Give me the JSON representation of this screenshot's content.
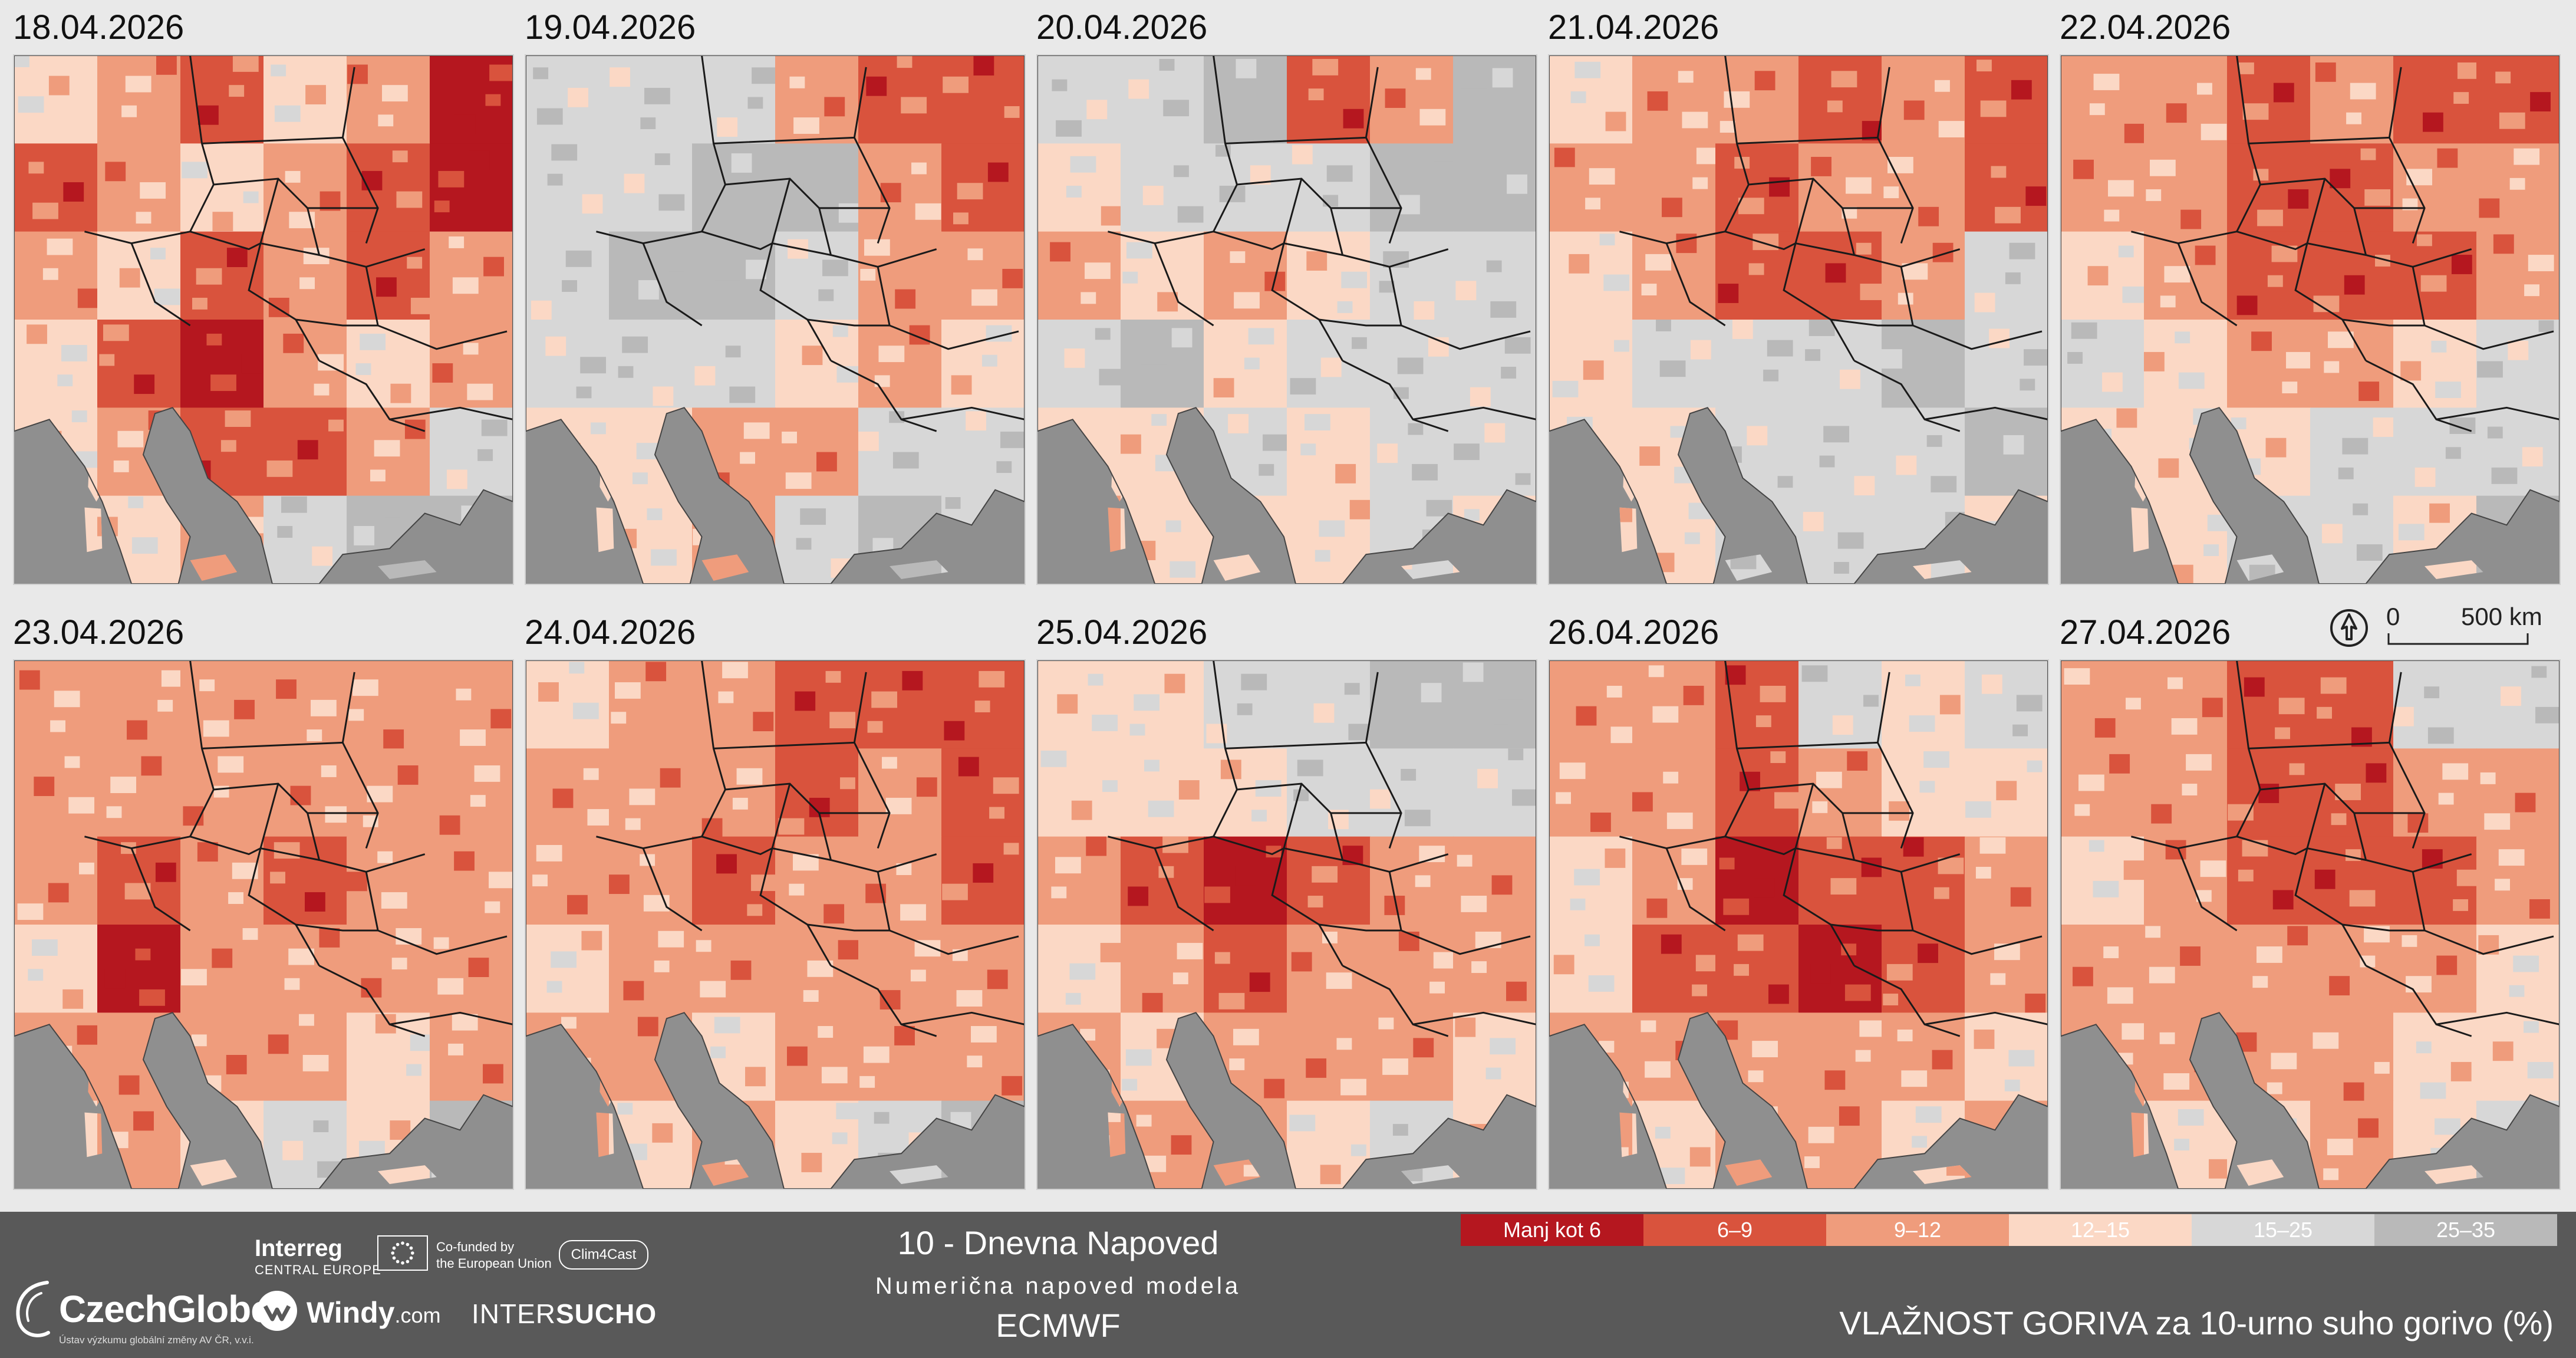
{
  "panels": [
    {
      "date": "18.04.2026",
      "scheme": [
        4,
        3,
        2,
        4,
        3,
        1,
        2,
        3,
        4,
        3,
        2,
        1,
        3,
        4,
        2,
        3,
        2,
        3,
        4,
        2,
        1,
        3,
        4,
        3,
        4,
        3,
        2,
        2,
        3,
        5,
        4,
        4,
        3,
        5,
        6,
        6
      ]
    },
    {
      "date": "19.04.2026",
      "scheme": [
        5,
        5,
        5,
        3,
        2,
        2,
        5,
        5,
        6,
        6,
        3,
        2,
        5,
        6,
        6,
        5,
        3,
        3,
        5,
        5,
        5,
        4,
        3,
        4,
        4,
        4,
        3,
        3,
        5,
        5,
        4,
        4,
        3,
        5,
        6,
        5
      ]
    },
    {
      "date": "20.04.2026",
      "scheme": [
        5,
        5,
        6,
        2,
        3,
        6,
        4,
        5,
        5,
        5,
        6,
        6,
        3,
        4,
        3,
        4,
        5,
        5,
        5,
        6,
        4,
        5,
        5,
        5,
        4,
        4,
        5,
        4,
        5,
        5,
        3,
        4,
        4,
        4,
        5,
        4
      ]
    },
    {
      "date": "21.04.2026",
      "scheme": [
        4,
        3,
        3,
        2,
        3,
        2,
        3,
        3,
        2,
        3,
        3,
        2,
        4,
        3,
        2,
        2,
        3,
        5,
        4,
        5,
        5,
        5,
        6,
        5,
        4,
        4,
        5,
        5,
        5,
        6,
        4,
        4,
        5,
        5,
        5,
        4
      ]
    },
    {
      "date": "22.04.2026",
      "scheme": [
        3,
        3,
        2,
        3,
        2,
        2,
        3,
        3,
        2,
        2,
        3,
        3,
        4,
        3,
        2,
        2,
        2,
        3,
        5,
        4,
        3,
        3,
        4,
        5,
        4,
        4,
        4,
        5,
        5,
        5,
        4,
        4,
        5,
        5,
        4,
        6
      ]
    },
    {
      "date": "23.04.2026",
      "scheme": [
        3,
        3,
        3,
        3,
        3,
        3,
        3,
        3,
        3,
        3,
        3,
        3,
        3,
        2,
        3,
        2,
        3,
        3,
        4,
        1,
        3,
        3,
        3,
        3,
        3,
        3,
        3,
        3,
        4,
        3,
        4,
        3,
        4,
        5,
        4,
        6
      ]
    },
    {
      "date": "24.04.2026",
      "scheme": [
        4,
        3,
        3,
        2,
        2,
        2,
        3,
        3,
        3,
        2,
        3,
        2,
        3,
        3,
        2,
        3,
        3,
        2,
        4,
        3,
        3,
        3,
        3,
        3,
        3,
        3,
        4,
        3,
        3,
        3,
        3,
        4,
        3,
        4,
        5,
        6
      ]
    },
    {
      "date": "25.04.2026",
      "scheme": [
        4,
        4,
        5,
        5,
        6,
        6,
        4,
        4,
        4,
        5,
        5,
        5,
        3,
        2,
        1,
        2,
        3,
        3,
        4,
        3,
        2,
        3,
        3,
        3,
        3,
        4,
        3,
        3,
        3,
        4,
        3,
        3,
        3,
        4,
        5,
        4
      ]
    },
    {
      "date": "26.04.2026",
      "scheme": [
        3,
        3,
        2,
        5,
        4,
        5,
        3,
        3,
        2,
        3,
        4,
        4,
        4,
        3,
        1,
        2,
        2,
        3,
        4,
        2,
        2,
        1,
        2,
        3,
        3,
        3,
        3,
        3,
        3,
        4,
        3,
        4,
        3,
        3,
        4,
        3
      ]
    },
    {
      "date": "27.04.2026",
      "scheme": [
        3,
        3,
        2,
        2,
        5,
        5,
        3,
        3,
        2,
        2,
        3,
        3,
        4,
        3,
        2,
        2,
        2,
        3,
        3,
        3,
        3,
        3,
        3,
        4,
        3,
        3,
        3,
        3,
        4,
        4,
        3,
        4,
        4,
        3,
        4,
        5
      ]
    }
  ],
  "scale": {
    "zero": "0",
    "distance": "500 km"
  },
  "footer": {
    "title": "10 - Dnevna Napoved",
    "subtitle": "Numerična napoved modela",
    "model": "ECMWF",
    "caption": "VLAŽNOST GORIVA za 10-urno suho gorivo (%)"
  },
  "logos": {
    "czechglobe_name": "CzechGlobe",
    "czechglobe_sub": "Ústav výzkumu globální změny AV ČR, v.v.i.",
    "interreg": "Interreg",
    "interreg_sub": "CENTRAL EUROPE",
    "eu_line1": "Co-funded by",
    "eu_line2": "the European Union",
    "clim4cast": "Clim4Cast",
    "windy": "Windy",
    "windy_com": ".com",
    "inter": "INTER",
    "sucho": "SUCHO"
  },
  "legend": [
    {
      "label": "Manj kot 6",
      "color": "#b5171f",
      "text_color": "#ffffff"
    },
    {
      "label": "6–9",
      "color": "#d9533d",
      "text_color": "#ffffff"
    },
    {
      "label": "9–12",
      "color": "#ef9c7c",
      "text_color": "#ffffff"
    },
    {
      "label": "12–15",
      "color": "#fbd8c5",
      "text_color": "#ffffff"
    },
    {
      "label": "15–25",
      "color": "#d7d7d7",
      "text_color": "#ffffff"
    },
    {
      "label": "25–35",
      "color": "#b9b9b9",
      "text_color": "#ffffff"
    }
  ],
  "colors": {
    "sea": "#8f8f8f",
    "border_line": "#1a1a1a",
    "footer_bg": "#595959"
  },
  "icons": {
    "north": "north-arrow-icon"
  }
}
